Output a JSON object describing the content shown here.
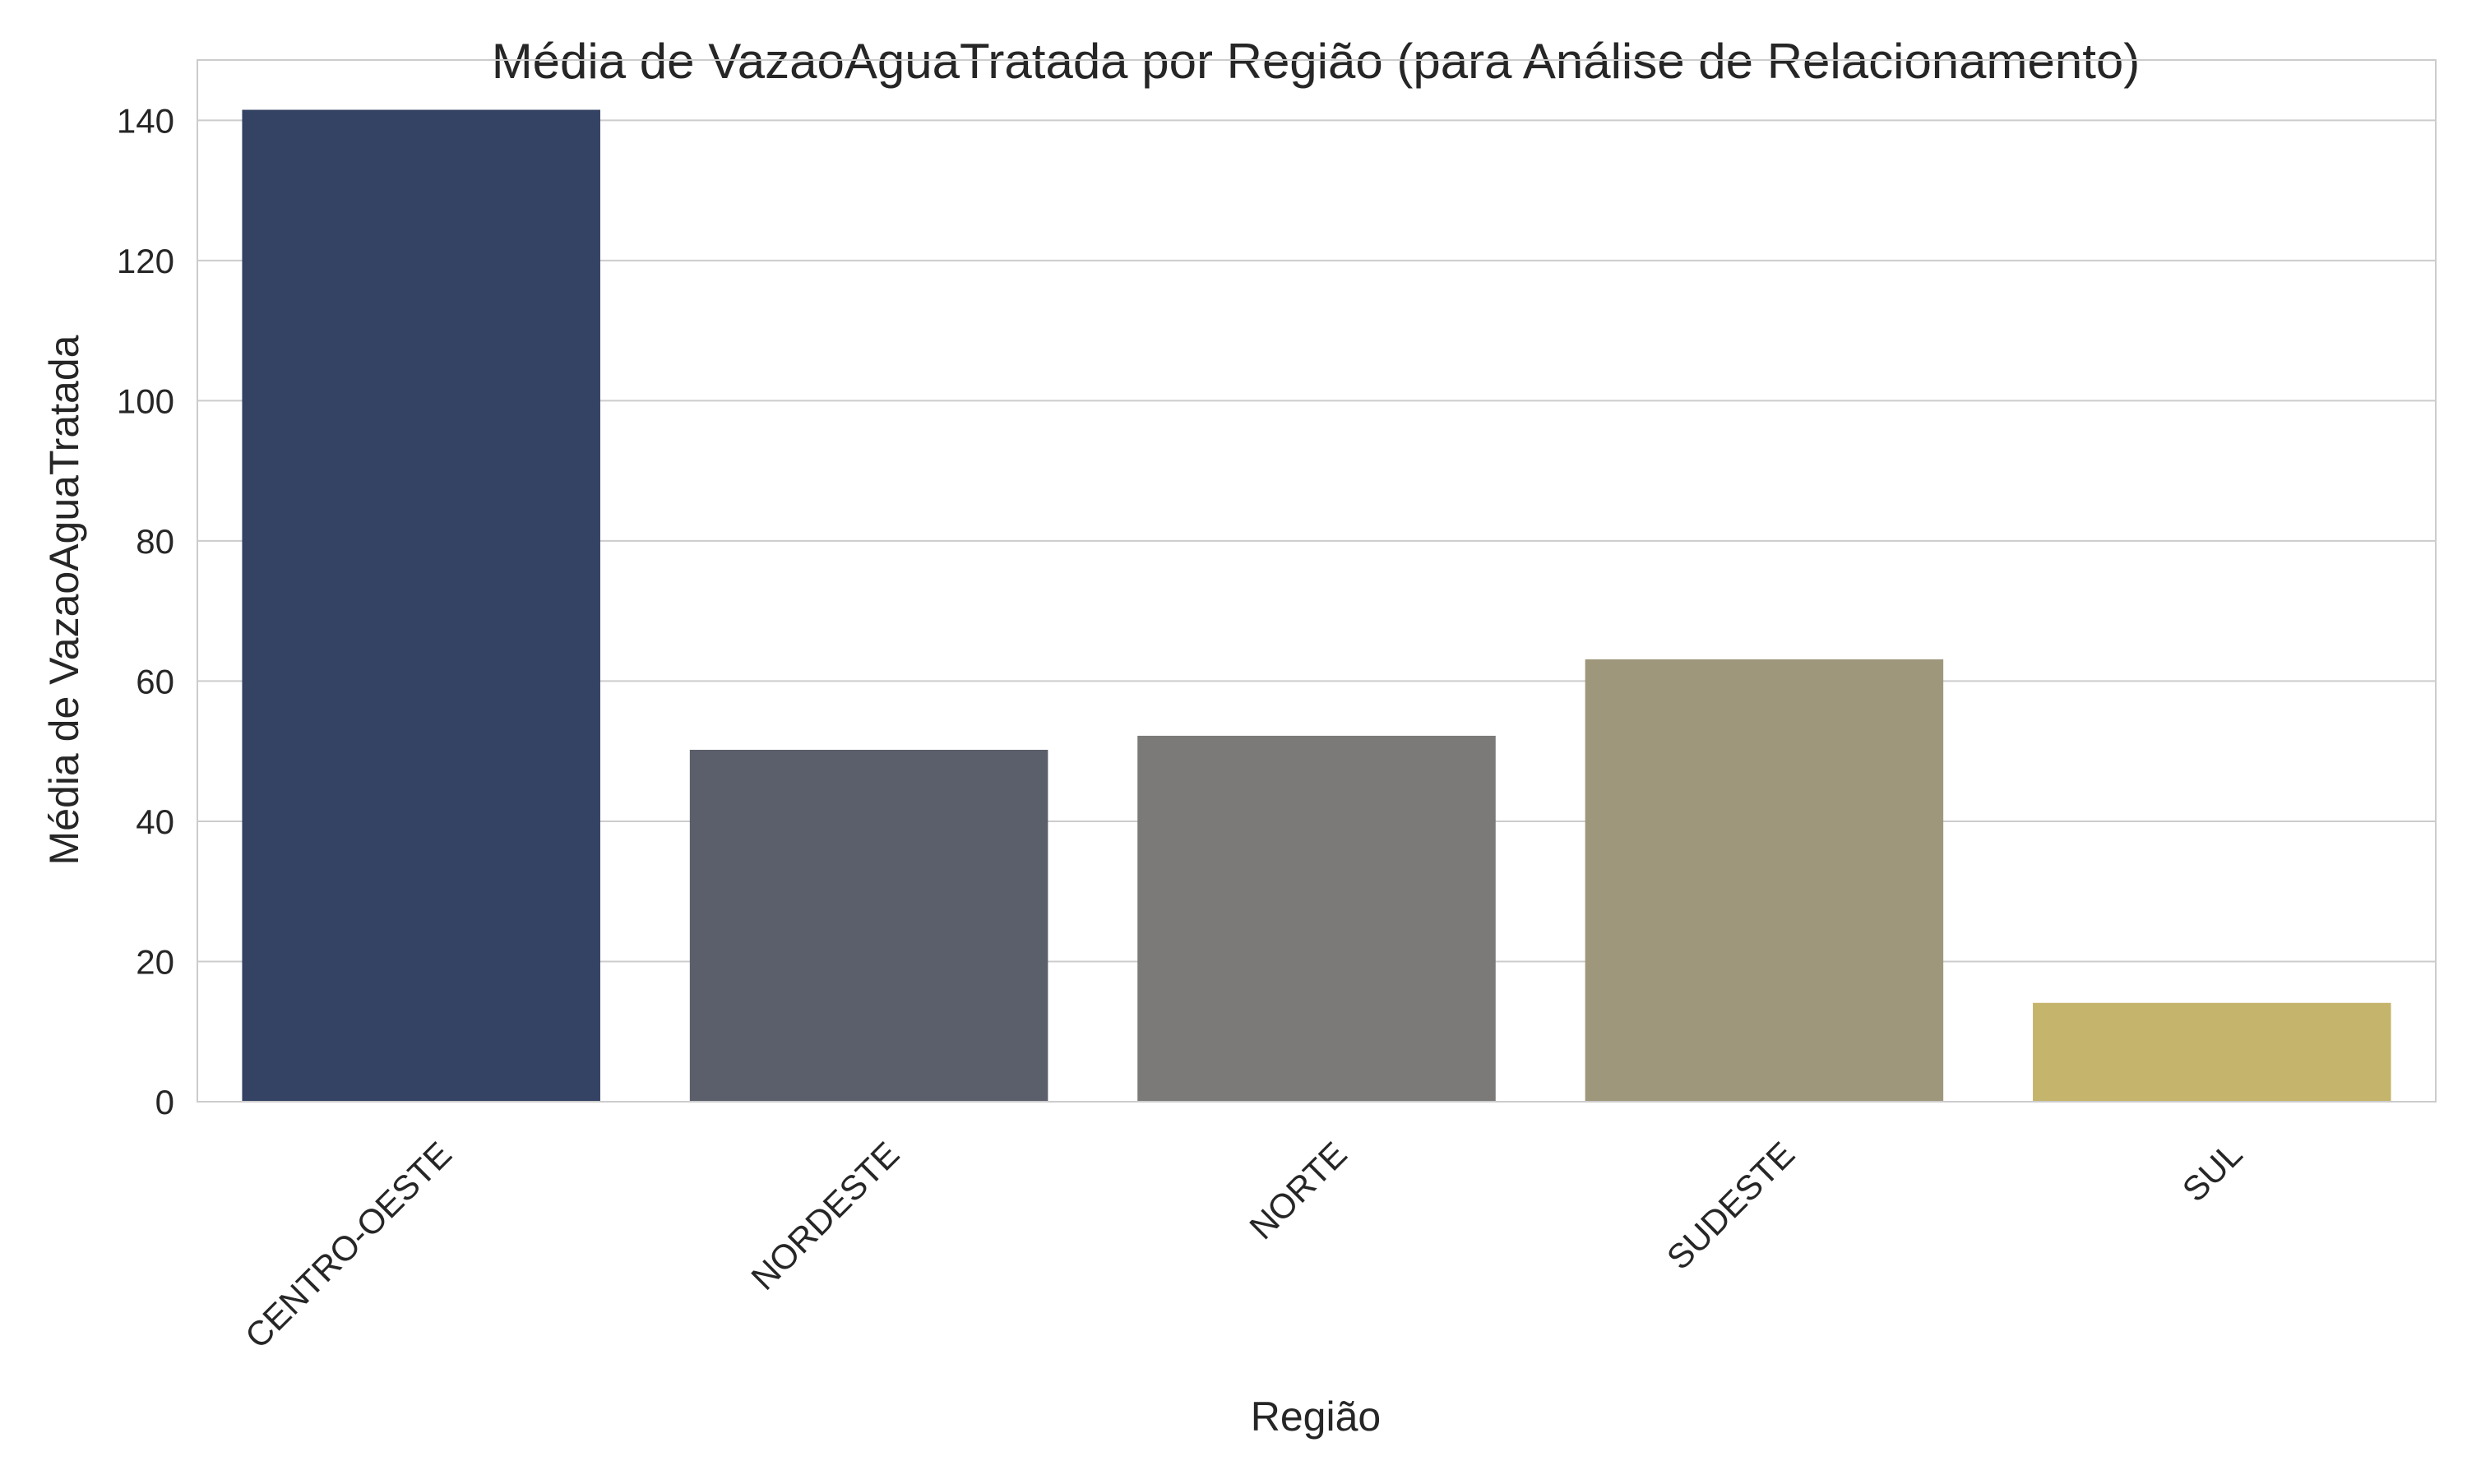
{
  "chart_data": {
    "type": "bar",
    "title": "Média de VazaoAguaTratada por Região (para Análise de Relacionamento)",
    "xlabel": "Região",
    "ylabel": "Média de VazaoAguaTratada",
    "categories": [
      "CENTRO-OESTE",
      "NORDESTE",
      "NORTE",
      "SUDESTE",
      "SUL"
    ],
    "values": [
      141.5,
      50.2,
      52.2,
      63.1,
      14.1
    ],
    "colors": [
      "#344263",
      "#5b5f6b",
      "#7b7a78",
      "#9f977b",
      "#c5b56c"
    ],
    "ylim": [
      0,
      148.6
    ],
    "yticks": [
      0,
      20,
      40,
      60,
      80,
      100,
      120,
      140
    ],
    "grid": true,
    "legend": "none"
  }
}
